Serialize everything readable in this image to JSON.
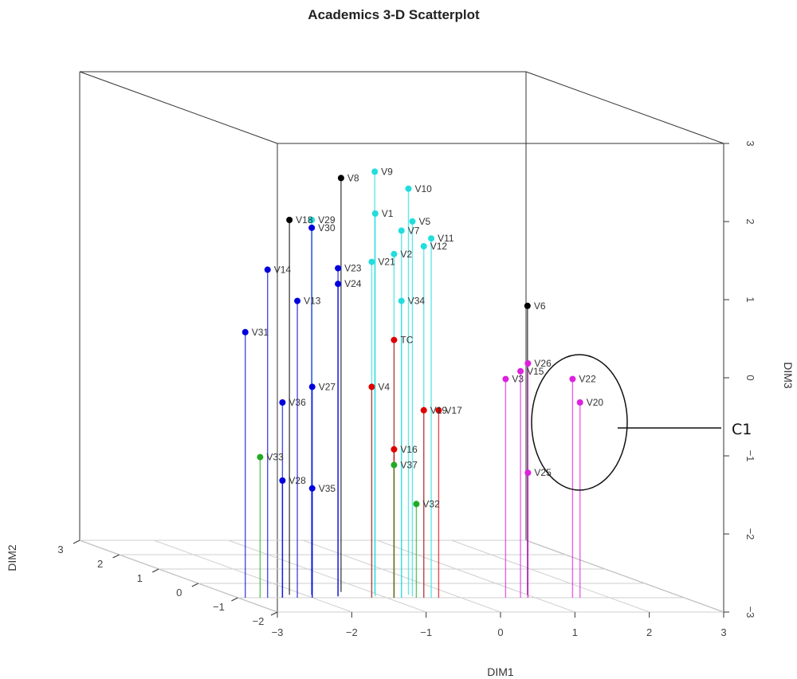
{
  "chart_data": {
    "type": "scatter",
    "subtype": "3d-scatter-with-drop-lines",
    "title": "Academics 3-D Scatterplot",
    "xlabel": "DIM1",
    "ylabel": "DIM2",
    "zlabel": "DIM3",
    "xlim": [
      -3,
      3
    ],
    "ylim": [
      -2,
      3
    ],
    "zlim": [
      -3,
      3
    ],
    "x_ticks": [
      "−3",
      "−2",
      "−1",
      "0",
      "1",
      "2",
      "3"
    ],
    "y_ticks": [
      "3",
      "2",
      "1",
      "0",
      "−1",
      "−2"
    ],
    "z_ticks": [
      "3",
      "2",
      "1",
      "0",
      "−1",
      "−2",
      "−3"
    ],
    "grid": true,
    "colors": {
      "black": "#000000",
      "blue": "#0000dd",
      "cyan": "#22dddd",
      "red": "#dd0000",
      "green": "#22aa22",
      "magenta": "#dd22dd"
    },
    "points": [
      {
        "label": "V31",
        "color": "blue",
        "x": -2.9,
        "y": -1.0,
        "z": 0.4
      },
      {
        "label": "V14",
        "color": "blue",
        "x": -2.6,
        "y": -1.0,
        "z": 1.2
      },
      {
        "label": "V13",
        "color": "blue",
        "x": -2.2,
        "y": -1.0,
        "z": 0.8
      },
      {
        "label": "V18",
        "color": "black",
        "x": -2.2,
        "y": -0.8,
        "z": 1.8
      },
      {
        "label": "V29",
        "color": "cyan",
        "x": -1.9,
        "y": -0.8,
        "z": 1.8
      },
      {
        "label": "V30",
        "color": "blue",
        "x": -1.9,
        "y": -0.8,
        "z": 1.7
      },
      {
        "label": "V23",
        "color": "blue",
        "x": -1.6,
        "y": -0.9,
        "z": 1.2
      },
      {
        "label": "V24",
        "color": "blue",
        "x": -1.6,
        "y": -0.9,
        "z": 1.0
      },
      {
        "label": "V27",
        "color": "blue",
        "x": -2.0,
        "y": -1.0,
        "z": -0.3
      },
      {
        "label": "V36",
        "color": "blue",
        "x": -2.4,
        "y": -1.0,
        "z": -0.5
      },
      {
        "label": "V33",
        "color": "green",
        "x": -2.7,
        "y": -1.0,
        "z": -1.2
      },
      {
        "label": "V28",
        "color": "blue",
        "x": -2.4,
        "y": -1.0,
        "z": -1.5
      },
      {
        "label": "V35",
        "color": "blue",
        "x": -2.0,
        "y": -1.0,
        "z": -1.6
      },
      {
        "label": "V8",
        "color": "black",
        "x": -1.4,
        "y": -0.6,
        "z": 2.3
      },
      {
        "label": "V9",
        "color": "cyan",
        "x": -1.0,
        "y": -0.7,
        "z": 2.4
      },
      {
        "label": "V10",
        "color": "cyan",
        "x": -0.6,
        "y": -0.8,
        "z": 2.2
      },
      {
        "label": "V1",
        "color": "cyan",
        "x": -1.1,
        "y": -0.9,
        "z": 1.9
      },
      {
        "label": "V5",
        "color": "cyan",
        "x": -0.6,
        "y": -0.9,
        "z": 1.8
      },
      {
        "label": "V7",
        "color": "cyan",
        "x": -0.8,
        "y": -1.0,
        "z": 1.7
      },
      {
        "label": "V11",
        "color": "cyan",
        "x": -0.4,
        "y": -1.0,
        "z": 1.6
      },
      {
        "label": "V12",
        "color": "cyan",
        "x": -0.5,
        "y": -1.0,
        "z": 1.5
      },
      {
        "label": "V2",
        "color": "cyan",
        "x": -0.9,
        "y": -1.0,
        "z": 1.4
      },
      {
        "label": "V21",
        "color": "cyan",
        "x": -1.2,
        "y": -1.0,
        "z": 1.3
      },
      {
        "label": "V34",
        "color": "cyan",
        "x": -0.8,
        "y": -1.0,
        "z": 0.8
      },
      {
        "label": "TC",
        "color": "red",
        "x": -0.9,
        "y": -1.0,
        "z": 0.3
      },
      {
        "label": "V4",
        "color": "red",
        "x": -1.2,
        "y": -1.0,
        "z": -0.3
      },
      {
        "label": "V19",
        "color": "red",
        "x": -0.5,
        "y": -1.0,
        "z": -0.6
      },
      {
        "label": "V17",
        "color": "red",
        "x": -0.3,
        "y": -1.0,
        "z": -0.6
      },
      {
        "label": "V16",
        "color": "red",
        "x": -0.9,
        "y": -1.0,
        "z": -1.1
      },
      {
        "label": "V37",
        "color": "green",
        "x": -0.9,
        "y": -1.0,
        "z": -1.3
      },
      {
        "label": "V32",
        "color": "green",
        "x": -0.6,
        "y": -1.0,
        "z": -1.8
      },
      {
        "label": "V6",
        "color": "black",
        "x": 1.0,
        "y": -0.8,
        "z": 0.7
      },
      {
        "label": "V26",
        "color": "magenta",
        "x": 0.9,
        "y": -1.0,
        "z": 0.0
      },
      {
        "label": "V15",
        "color": "magenta",
        "x": 0.8,
        "y": -1.0,
        "z": -0.1
      },
      {
        "label": "V3",
        "color": "magenta",
        "x": 0.6,
        "y": -1.0,
        "z": -0.2
      },
      {
        "label": "V22",
        "color": "magenta",
        "x": 1.5,
        "y": -1.0,
        "z": -0.2
      },
      {
        "label": "V20",
        "color": "magenta",
        "x": 1.6,
        "y": -1.0,
        "z": -0.5
      },
      {
        "label": "V25",
        "color": "magenta",
        "x": 0.9,
        "y": -1.0,
        "z": -1.4
      }
    ],
    "annotations": [
      {
        "text": "C1",
        "kind": "cluster-ellipse"
      }
    ]
  }
}
